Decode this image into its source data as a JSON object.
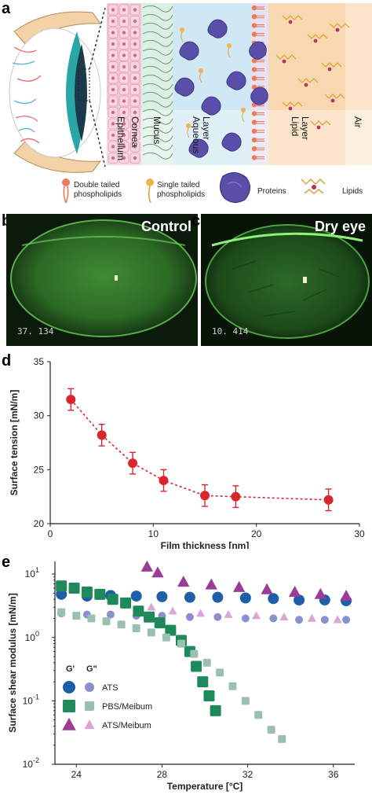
{
  "panels": {
    "a": "a",
    "b": "b",
    "c": "c",
    "d": "d",
    "e": "e"
  },
  "panel_a": {
    "layer_labels": [
      "Epithelium",
      "Cornea",
      "Mucus",
      "Aqueous\nLayer",
      "Lipid\nLayer",
      "Air"
    ],
    "legend": [
      {
        "label": "Double tailed\nphospholipids",
        "icon": "double-tailed-phospholipid-icon"
      },
      {
        "label": "Single tailed\nphospholipids",
        "icon": "single-tailed-phospholipid-icon"
      },
      {
        "label": "Proteins",
        "icon": "protein-icon"
      },
      {
        "label": "Lipids",
        "icon": "lipid-icon"
      }
    ],
    "colors": {
      "epithelium": "#f3c8d6",
      "mucus": "#dcefe6",
      "aqueous": "#cfe8f3",
      "lipid": "#f8d8b0",
      "air": "#fbe6cc",
      "protein": "#5a4fa8",
      "lipid_chain": "#e2a23a",
      "phospholipid_head": "#e97c5a"
    }
  },
  "panel_b": {
    "label": "Control",
    "stamp": "37. 134"
  },
  "panel_c": {
    "label": "Dry eye",
    "stamp": "10. 414"
  },
  "chart_data": [
    {
      "type": "line",
      "panel": "d",
      "xlabel": "Film thickness [nm]",
      "ylabel": "Surface tension [mN/m]",
      "xlim": [
        0,
        30
      ],
      "ylim": [
        20,
        35
      ],
      "xticks": [
        0,
        10,
        20,
        30
      ],
      "yticks": [
        20,
        25,
        30,
        35
      ],
      "grid": false,
      "color": "#d8262c",
      "series": [
        {
          "x": [
            2,
            5,
            8,
            11,
            15,
            18,
            27
          ],
          "y": [
            31.5,
            28.2,
            25.6,
            24.0,
            22.6,
            22.5,
            22.2
          ],
          "err": [
            1.0,
            1.0,
            1.0,
            1.0,
            1.0,
            1.0,
            1.0
          ]
        }
      ]
    },
    {
      "type": "scatter",
      "panel": "e",
      "xlabel": "Temperature [°C]",
      "ylabel": "Surface shear modulus [mN/m]",
      "xlim": [
        23,
        37
      ],
      "ylim_log10": [
        -2,
        1.2
      ],
      "xticks": [
        "24",
        "28",
        "32",
        "36"
      ],
      "xtick_values": [
        24,
        28,
        32,
        36
      ],
      "yticks": [
        "10-2",
        "10-1",
        "100",
        "101"
      ],
      "ytick_values": [
        -2,
        -1,
        0,
        1
      ],
      "scale": "log",
      "legend": {
        "header": [
          "G'",
          "G\""
        ],
        "entries": [
          "ATS",
          "PBS/Meibum",
          "ATS/Meibum"
        ],
        "placement": "bottom-left"
      },
      "series": [
        {
          "name": "ATS",
          "modulus": "G'",
          "shape": "circle",
          "color": "#1f5fa8",
          "x": [
            23.3,
            24.5,
            25.6,
            26.8,
            28.0,
            29.3,
            30.6,
            31.9,
            33.2,
            34.4,
            35.6,
            36.6
          ],
          "y": [
            4.8,
            4.5,
            4.6,
            4.5,
            4.4,
            4.3,
            4.3,
            4.2,
            4.1,
            3.9,
            3.9,
            3.8
          ]
        },
        {
          "name": "ATS",
          "modulus": "G\"",
          "shape": "circle",
          "color": "#8a90cc",
          "x": [
            23.3,
            24.5,
            25.6,
            26.8,
            28.0,
            29.3,
            30.6,
            31.9,
            33.2,
            34.4,
            35.6,
            36.6
          ],
          "y": [
            2.4,
            2.3,
            2.3,
            2.2,
            2.2,
            2.1,
            2.1,
            2.0,
            2.0,
            1.9,
            1.9,
            1.9
          ]
        },
        {
          "name": "PBS/Meibum",
          "modulus": "G'",
          "shape": "square",
          "color": "#1e8a5c",
          "x": [
            23.3,
            23.9,
            24.5,
            25.1,
            25.7,
            26.3,
            26.9,
            27.4,
            27.9,
            28.4,
            28.9,
            29.3,
            29.6,
            29.9,
            30.2,
            30.5
          ],
          "y": [
            6.5,
            6.0,
            5.2,
            4.8,
            4.0,
            3.5,
            2.6,
            2.1,
            1.7,
            1.3,
            0.9,
            0.6,
            0.35,
            0.2,
            0.12,
            0.07
          ]
        },
        {
          "name": "PBS/Meibum",
          "modulus": "G\"",
          "shape": "square",
          "color": "#9bc0b0",
          "x": [
            23.3,
            24.0,
            24.7,
            25.4,
            26.1,
            26.8,
            27.5,
            28.2,
            28.9,
            29.5,
            30.1,
            30.7,
            31.3,
            31.9,
            32.5,
            33.1,
            33.6
          ],
          "y": [
            2.5,
            2.2,
            2.0,
            1.8,
            1.6,
            1.4,
            1.2,
            1.0,
            0.8,
            0.55,
            0.4,
            0.28,
            0.17,
            0.1,
            0.06,
            0.035,
            0.025
          ]
        },
        {
          "name": "ATS/Meibum",
          "modulus": "G'",
          "shape": "triangle",
          "color": "#9a3d98",
          "x": [
            27.3,
            27.8,
            29.0,
            30.3,
            31.6,
            32.9,
            34.2,
            35.4,
            36.6
          ],
          "y": [
            13.0,
            10.5,
            7.5,
            6.8,
            6.2,
            5.7,
            5.2,
            4.8,
            4.5
          ]
        },
        {
          "name": "ATS/Meibum",
          "modulus": "G\"",
          "shape": "triangle",
          "color": "#d9a6d6",
          "x": [
            27.5,
            28.5,
            29.8,
            31.1,
            32.4,
            33.7,
            35.0,
            36.2
          ],
          "y": [
            3.0,
            2.6,
            2.4,
            2.3,
            2.2,
            2.1,
            2.0,
            1.9
          ]
        }
      ]
    }
  ]
}
